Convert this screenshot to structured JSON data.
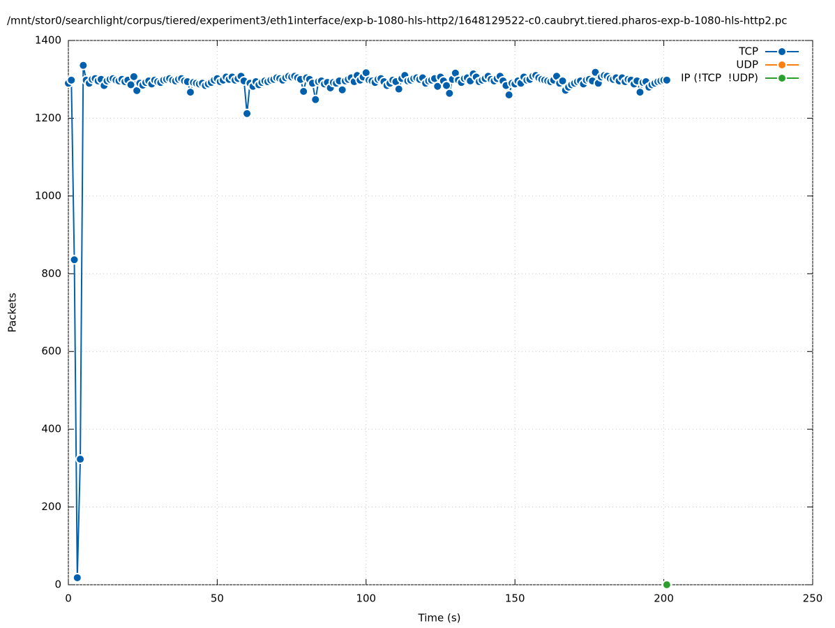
{
  "chart_data": {
    "type": "line",
    "title": "/mnt/stor0/searchlight/corpus/tiered/experiment3/eth1interface/exp-b-1080-hls-http2/1648129522-c0.caubryt.tiered.pharos-exp-b-1080-hls-http2.pc",
    "x_label": "Time (s)",
    "y_label": "Packets",
    "xlim": [
      0,
      250
    ],
    "xticks": [
      0,
      50,
      100,
      150,
      200,
      250
    ],
    "ylim": [
      0,
      1400
    ],
    "yticks": [
      0,
      200,
      400,
      600,
      800,
      1000,
      1200,
      1400
    ],
    "grid": true,
    "legend": "top-right",
    "series": [
      {
        "name": "TCP",
        "color": "#0060ad",
        "x": [
          0,
          1,
          2,
          3,
          4,
          5,
          6,
          7,
          8,
          9,
          10,
          11,
          12,
          13,
          14,
          15,
          16,
          17,
          18,
          19,
          20,
          21,
          22,
          23,
          24,
          25,
          26,
          27,
          28,
          29,
          30,
          31,
          32,
          33,
          34,
          35,
          36,
          37,
          38,
          39,
          40,
          41,
          42,
          43,
          44,
          45,
          46,
          47,
          48,
          49,
          50,
          51,
          52,
          53,
          54,
          55,
          56,
          57,
          58,
          59,
          60,
          61,
          62,
          63,
          64,
          65,
          66,
          67,
          68,
          69,
          70,
          71,
          72,
          73,
          74,
          75,
          76,
          77,
          78,
          79,
          80,
          81,
          82,
          83,
          84,
          85,
          86,
          87,
          88,
          89,
          90,
          91,
          92,
          93,
          94,
          95,
          96,
          97,
          98,
          99,
          100,
          101,
          102,
          103,
          104,
          105,
          106,
          107,
          108,
          109,
          110,
          111,
          112,
          113,
          114,
          115,
          116,
          117,
          118,
          119,
          120,
          121,
          122,
          123,
          124,
          125,
          126,
          127,
          128,
          129,
          130,
          131,
          132,
          133,
          134,
          135,
          136,
          137,
          138,
          139,
          140,
          141,
          142,
          143,
          144,
          145,
          146,
          147,
          148,
          149,
          150,
          151,
          152,
          153,
          154,
          155,
          156,
          157,
          158,
          159,
          160,
          161,
          162,
          163,
          164,
          165,
          166,
          167,
          168,
          169,
          170,
          171,
          172,
          173,
          174,
          175,
          176,
          177,
          178,
          179,
          180,
          181,
          182,
          183,
          184,
          185,
          186,
          187,
          188,
          189,
          190,
          191,
          192,
          193,
          194,
          195,
          196,
          197,
          198,
          199,
          200,
          201
        ],
        "values": [
          1290,
          1298,
          836,
          18,
          323,
          1336,
          1298,
          1290,
          1300,
          1302,
          1296,
          1300,
          1284,
          1296,
          1300,
          1302,
          1298,
          1296,
          1300,
          1294,
          1298,
          1286,
          1307,
          1271,
          1290,
          1285,
          1292,
          1296,
          1288,
          1298,
          1294,
          1292,
          1298,
          1300,
          1302,
          1298,
          1296,
          1300,
          1302,
          1296,
          1294,
          1267,
          1292,
          1290,
          1288,
          1290,
          1284,
          1288,
          1292,
          1298,
          1302,
          1294,
          1298,
          1306,
          1300,
          1306,
          1298,
          1302,
          1308,
          1296,
          1212,
          1290,
          1282,
          1294,
          1286,
          1292,
          1296,
          1294,
          1298,
          1300,
          1304,
          1302,
          1298,
          1304,
          1308,
          1306,
          1308,
          1304,
          1300,
          1269,
          1304,
          1300,
          1290,
          1248,
          1294,
          1296,
          1288,
          1292,
          1278,
          1292,
          1290,
          1296,
          1273,
          1296,
          1300,
          1304,
          1294,
          1310,
          1298,
          1306,
          1317,
          1298,
          1296,
          1292,
          1300,
          1302,
          1294,
          1284,
          1290,
          1298,
          1294,
          1275,
          1302,
          1310,
          1296,
          1298,
          1302,
          1304,
          1300,
          1304,
          1290,
          1296,
          1298,
          1302,
          1282,
          1306,
          1296,
          1284,
          1264,
          1300,
          1316,
          1298,
          1292,
          1302,
          1304,
          1296,
          1314,
          1306,
          1294,
          1298,
          1302,
          1308,
          1300,
          1296,
          1302,
          1308,
          1296,
          1284,
          1260,
          1290,
          1288,
          1296,
          1290,
          1306,
          1298,
          1300,
          1308,
          1310,
          1304,
          1300,
          1298,
          1296,
          1294,
          1298,
          1308,
          1290,
          1296,
          1272,
          1280,
          1286,
          1290,
          1294,
          1296,
          1288,
          1298,
          1300,
          1296,
          1318,
          1290,
          1306,
          1310,
          1308,
          1302,
          1300,
          1304,
          1296,
          1304,
          1294,
          1300,
          1298,
          1288,
          1296,
          1267,
          1292,
          1294,
          1280,
          1286,
          1290,
          1294,
          1296,
          1298,
          1298
        ]
      },
      {
        "name": "UDP",
        "color": "#ff7f0e",
        "x": [],
        "values": []
      },
      {
        "name": "IP (!TCP  !UDP)",
        "color": "#2ca02c",
        "x": [
          201
        ],
        "values": [
          0
        ]
      }
    ]
  }
}
